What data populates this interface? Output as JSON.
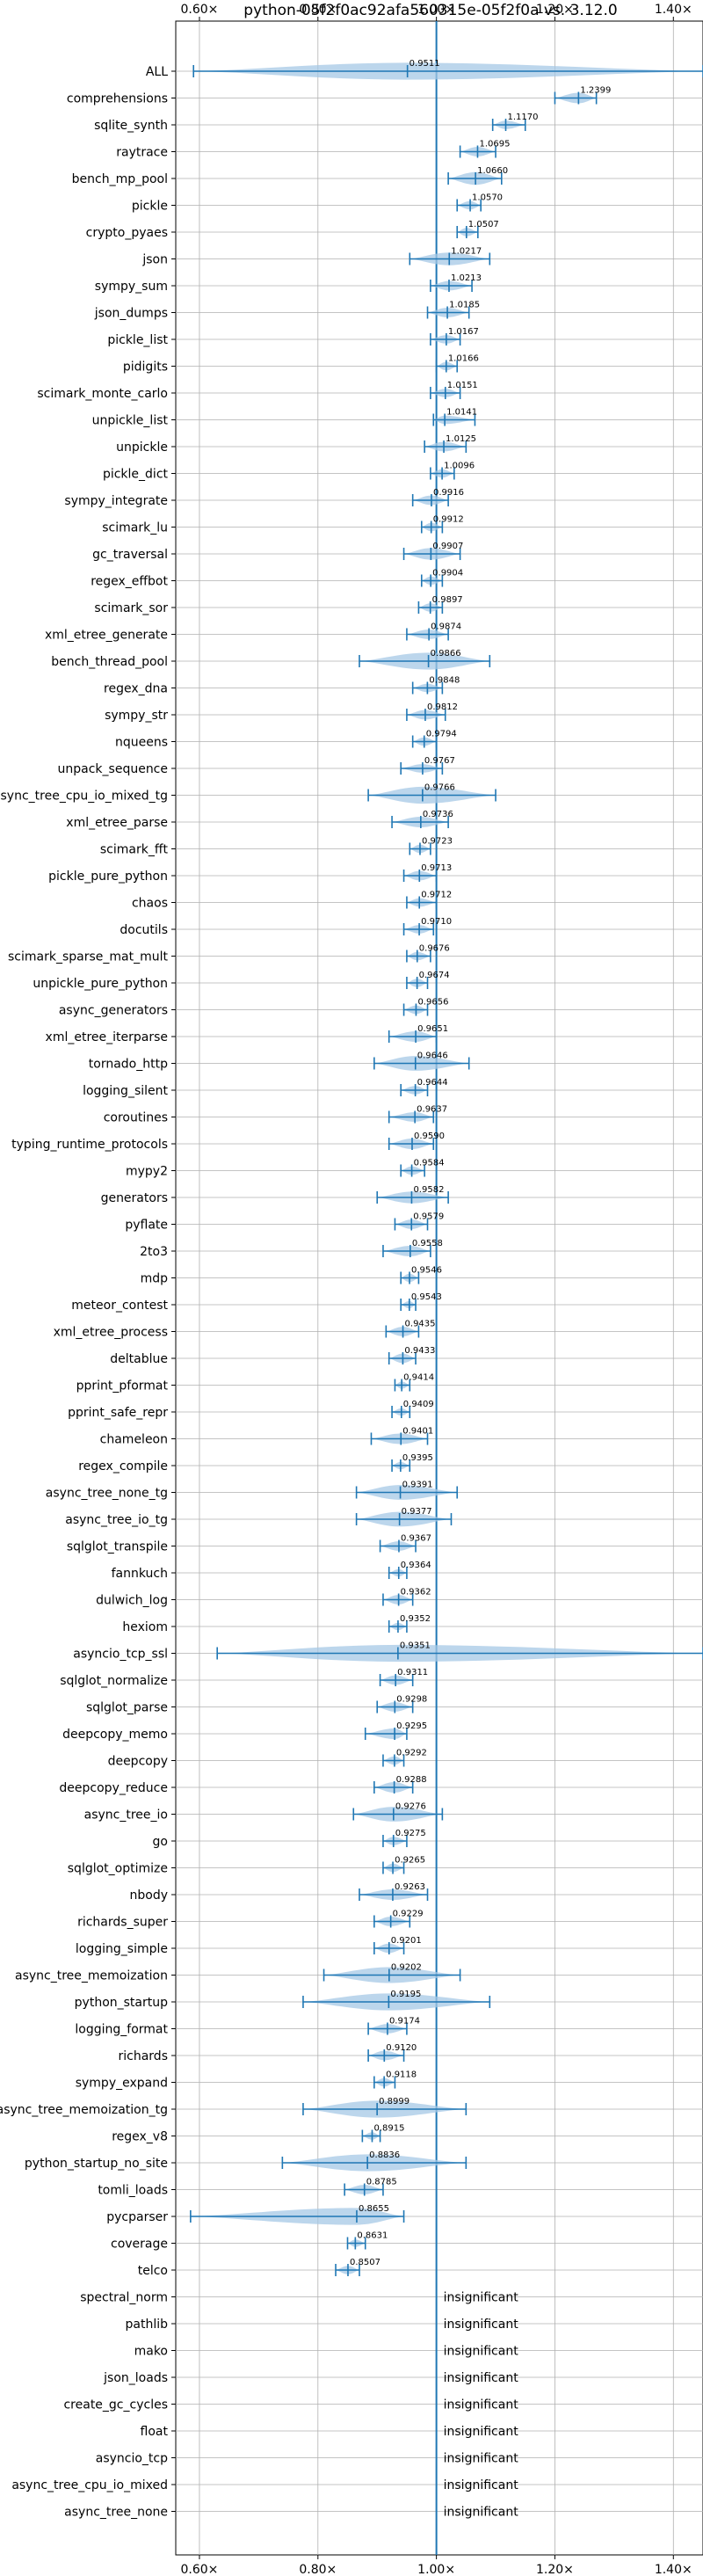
{
  "chart_data": {
    "type": "violin",
    "title": "python-05f2f0ac92afa560315e-05f2f0a vs. 3.12.0",
    "xlim": [
      0.56,
      1.45
    ],
    "xticks": [
      0.6,
      0.8,
      1.0,
      1.2,
      1.4
    ],
    "xtick_labels": [
      "0.60×",
      "0.80×",
      "1.00×",
      "1.20×",
      "1.40×"
    ],
    "reference_line": 1.0,
    "grid": true,
    "colors": {
      "violin": "#a6c8e6",
      "line": "#1f77b4",
      "grid": "#b0b0b0"
    },
    "insignificant_text": "insignificant",
    "benchmarks": [
      {
        "name": "ALL",
        "value": 0.9511,
        "label": "0.9511",
        "min": 0.59,
        "max": 1.45,
        "width": 0.8
      },
      {
        "name": "comprehensions",
        "value": 1.2399,
        "label": "1.2399",
        "min": 1.2,
        "max": 1.27,
        "width": 0.5
      },
      {
        "name": "sqlite_synth",
        "value": 1.117,
        "label": "1.1170",
        "min": 1.095,
        "max": 1.15,
        "width": 0.4
      },
      {
        "name": "raytrace",
        "value": 1.0695,
        "label": "1.0695",
        "min": 1.04,
        "max": 1.1,
        "width": 0.45
      },
      {
        "name": "bench_mp_pool",
        "value": 1.066,
        "label": "1.0660",
        "min": 1.02,
        "max": 1.11,
        "width": 0.6
      },
      {
        "name": "pickle",
        "value": 1.057,
        "label": "1.0570",
        "min": 1.035,
        "max": 1.075,
        "width": 0.4
      },
      {
        "name": "crypto_pyaes",
        "value": 1.0507,
        "label": "1.0507",
        "min": 1.035,
        "max": 1.07,
        "width": 0.4
      },
      {
        "name": "json",
        "value": 1.0217,
        "label": "1.0217",
        "min": 0.955,
        "max": 1.09,
        "width": 0.6
      },
      {
        "name": "sympy_sum",
        "value": 1.0213,
        "label": "1.0213",
        "min": 0.99,
        "max": 1.06,
        "width": 0.45
      },
      {
        "name": "json_dumps",
        "value": 1.0185,
        "label": "1.0185",
        "min": 0.985,
        "max": 1.055,
        "width": 0.45
      },
      {
        "name": "pickle_list",
        "value": 1.0167,
        "label": "1.0167",
        "min": 0.99,
        "max": 1.04,
        "width": 0.4
      },
      {
        "name": "pidigits",
        "value": 1.0166,
        "label": "1.0166",
        "min": 1.0,
        "max": 1.035,
        "width": 0.4
      },
      {
        "name": "scimark_monte_carlo",
        "value": 1.0151,
        "label": "1.0151",
        "min": 0.99,
        "max": 1.04,
        "width": 0.4
      },
      {
        "name": "unpickle_list",
        "value": 1.0141,
        "label": "1.0141",
        "min": 0.995,
        "max": 1.065,
        "width": 0.4
      },
      {
        "name": "unpickle",
        "value": 1.0125,
        "label": "1.0125",
        "min": 0.98,
        "max": 1.05,
        "width": 0.45
      },
      {
        "name": "pickle_dict",
        "value": 1.0096,
        "label": "1.0096",
        "min": 0.99,
        "max": 1.03,
        "width": 0.4
      },
      {
        "name": "sympy_integrate",
        "value": 0.9916,
        "label": "0.9916",
        "min": 0.96,
        "max": 1.02,
        "width": 0.45
      },
      {
        "name": "scimark_lu",
        "value": 0.9912,
        "label": "0.9912",
        "min": 0.975,
        "max": 1.01,
        "width": 0.4
      },
      {
        "name": "gc_traversal",
        "value": 0.9907,
        "label": "0.9907",
        "min": 0.945,
        "max": 1.04,
        "width": 0.55
      },
      {
        "name": "regex_effbot",
        "value": 0.9904,
        "label": "0.9904",
        "min": 0.975,
        "max": 1.01,
        "width": 0.4
      },
      {
        "name": "scimark_sor",
        "value": 0.9897,
        "label": "0.9897",
        "min": 0.97,
        "max": 1.01,
        "width": 0.4
      },
      {
        "name": "xml_etree_generate",
        "value": 0.9874,
        "label": "0.9874",
        "min": 0.95,
        "max": 1.02,
        "width": 0.45
      },
      {
        "name": "bench_thread_pool",
        "value": 0.9866,
        "label": "0.9866",
        "min": 0.87,
        "max": 1.09,
        "width": 0.8
      },
      {
        "name": "regex_dna",
        "value": 0.9848,
        "label": "0.9848",
        "min": 0.96,
        "max": 1.01,
        "width": 0.4
      },
      {
        "name": "sympy_str",
        "value": 0.9812,
        "label": "0.9812",
        "min": 0.95,
        "max": 1.015,
        "width": 0.45
      },
      {
        "name": "nqueens",
        "value": 0.9794,
        "label": "0.9794",
        "min": 0.96,
        "max": 1.0,
        "width": 0.4
      },
      {
        "name": "unpack_sequence",
        "value": 0.9767,
        "label": "0.9767",
        "min": 0.94,
        "max": 1.01,
        "width": 0.4
      },
      {
        "name": "async_tree_cpu_io_mixed_tg",
        "value": 0.9766,
        "label": "0.9766",
        "min": 0.885,
        "max": 1.1,
        "width": 0.8
      },
      {
        "name": "xml_etree_parse",
        "value": 0.9736,
        "label": "0.9736",
        "min": 0.925,
        "max": 1.02,
        "width": 0.5
      },
      {
        "name": "scimark_fft",
        "value": 0.9723,
        "label": "0.9723",
        "min": 0.955,
        "max": 0.99,
        "width": 0.4
      },
      {
        "name": "pickle_pure_python",
        "value": 0.9713,
        "label": "0.9713",
        "min": 0.945,
        "max": 1.0,
        "width": 0.45
      },
      {
        "name": "chaos",
        "value": 0.9712,
        "label": "0.9712",
        "min": 0.95,
        "max": 1.0,
        "width": 0.4
      },
      {
        "name": "docutils",
        "value": 0.971,
        "label": "0.9710",
        "min": 0.945,
        "max": 0.995,
        "width": 0.4
      },
      {
        "name": "scimark_sparse_mat_mult",
        "value": 0.9676,
        "label": "0.9676",
        "min": 0.95,
        "max": 0.99,
        "width": 0.4
      },
      {
        "name": "unpickle_pure_python",
        "value": 0.9674,
        "label": "0.9674",
        "min": 0.95,
        "max": 0.985,
        "width": 0.4
      },
      {
        "name": "async_generators",
        "value": 0.9656,
        "label": "0.9656",
        "min": 0.945,
        "max": 0.985,
        "width": 0.4
      },
      {
        "name": "xml_etree_iterparse",
        "value": 0.9651,
        "label": "0.9651",
        "min": 0.92,
        "max": 1.0,
        "width": 0.5
      },
      {
        "name": "tornado_http",
        "value": 0.9646,
        "label": "0.9646",
        "min": 0.895,
        "max": 1.055,
        "width": 0.7
      },
      {
        "name": "logging_silent",
        "value": 0.9644,
        "label": "0.9644",
        "min": 0.94,
        "max": 0.985,
        "width": 0.4
      },
      {
        "name": "coroutines",
        "value": 0.9637,
        "label": "0.9637",
        "min": 0.92,
        "max": 0.995,
        "width": 0.45
      },
      {
        "name": "typing_runtime_protocols",
        "value": 0.959,
        "label": "0.9590",
        "min": 0.92,
        "max": 0.995,
        "width": 0.5
      },
      {
        "name": "mypy2",
        "value": 0.9584,
        "label": "0.9584",
        "min": 0.94,
        "max": 0.98,
        "width": 0.4
      },
      {
        "name": "generators",
        "value": 0.9582,
        "label": "0.9582",
        "min": 0.9,
        "max": 1.02,
        "width": 0.55
      },
      {
        "name": "pyflate",
        "value": 0.9579,
        "label": "0.9579",
        "min": 0.93,
        "max": 0.985,
        "width": 0.45
      },
      {
        "name": "2to3",
        "value": 0.9558,
        "label": "0.9558",
        "min": 0.91,
        "max": 0.99,
        "width": 0.5
      },
      {
        "name": "mdp",
        "value": 0.9546,
        "label": "0.9546",
        "min": 0.94,
        "max": 0.97,
        "width": 0.4
      },
      {
        "name": "meteor_contest",
        "value": 0.9543,
        "label": "0.9543",
        "min": 0.94,
        "max": 0.965,
        "width": 0.35
      },
      {
        "name": "xml_etree_process",
        "value": 0.9435,
        "label": "0.9435",
        "min": 0.915,
        "max": 0.97,
        "width": 0.45
      },
      {
        "name": "deltablue",
        "value": 0.9433,
        "label": "0.9433",
        "min": 0.92,
        "max": 0.965,
        "width": 0.45
      },
      {
        "name": "pprint_pformat",
        "value": 0.9414,
        "label": "0.9414",
        "min": 0.93,
        "max": 0.955,
        "width": 0.35
      },
      {
        "name": "pprint_safe_repr",
        "value": 0.9409,
        "label": "0.9409",
        "min": 0.925,
        "max": 0.955,
        "width": 0.35
      },
      {
        "name": "chameleon",
        "value": 0.9401,
        "label": "0.9401",
        "min": 0.89,
        "max": 0.985,
        "width": 0.5
      },
      {
        "name": "regex_compile",
        "value": 0.9395,
        "label": "0.9395",
        "min": 0.925,
        "max": 0.955,
        "width": 0.35
      },
      {
        "name": "async_tree_none_tg",
        "value": 0.9391,
        "label": "0.9391",
        "min": 0.865,
        "max": 1.035,
        "width": 0.7
      },
      {
        "name": "async_tree_io_tg",
        "value": 0.9377,
        "label": "0.9377",
        "min": 0.865,
        "max": 1.025,
        "width": 0.7
      },
      {
        "name": "sqlglot_transpile",
        "value": 0.9367,
        "label": "0.9367",
        "min": 0.905,
        "max": 0.965,
        "width": 0.45
      },
      {
        "name": "fannkuch",
        "value": 0.9364,
        "label": "0.9364",
        "min": 0.92,
        "max": 0.95,
        "width": 0.35
      },
      {
        "name": "dulwich_log",
        "value": 0.9362,
        "label": "0.9362",
        "min": 0.91,
        "max": 0.96,
        "width": 0.45
      },
      {
        "name": "hexiom",
        "value": 0.9352,
        "label": "0.9352",
        "min": 0.92,
        "max": 0.95,
        "width": 0.35
      },
      {
        "name": "asyncio_tcp_ssl",
        "value": 0.9351,
        "label": "0.9351",
        "min": 0.63,
        "max": 1.45,
        "width": 0.8
      },
      {
        "name": "sqlglot_normalize",
        "value": 0.9311,
        "label": "0.9311",
        "min": 0.905,
        "max": 0.96,
        "width": 0.45
      },
      {
        "name": "sqlglot_parse",
        "value": 0.9298,
        "label": "0.9298",
        "min": 0.9,
        "max": 0.96,
        "width": 0.45
      },
      {
        "name": "deepcopy_memo",
        "value": 0.9295,
        "label": "0.9295",
        "min": 0.88,
        "max": 0.95,
        "width": 0.5
      },
      {
        "name": "deepcopy",
        "value": 0.9292,
        "label": "0.9292",
        "min": 0.91,
        "max": 0.945,
        "width": 0.4
      },
      {
        "name": "deepcopy_reduce",
        "value": 0.9288,
        "label": "0.9288",
        "min": 0.895,
        "max": 0.96,
        "width": 0.5
      },
      {
        "name": "async_tree_io",
        "value": 0.9276,
        "label": "0.9276",
        "min": 0.86,
        "max": 1.01,
        "width": 0.7
      },
      {
        "name": "go",
        "value": 0.9275,
        "label": "0.9275",
        "min": 0.91,
        "max": 0.95,
        "width": 0.4
      },
      {
        "name": "sqlglot_optimize",
        "value": 0.9265,
        "label": "0.9265",
        "min": 0.91,
        "max": 0.945,
        "width": 0.4
      },
      {
        "name": "nbody",
        "value": 0.9263,
        "label": "0.9263",
        "min": 0.87,
        "max": 0.985,
        "width": 0.5
      },
      {
        "name": "richards_super",
        "value": 0.9229,
        "label": "0.9229",
        "min": 0.895,
        "max": 0.955,
        "width": 0.45
      },
      {
        "name": "logging_simple",
        "value": 0.9201,
        "label": "0.9201",
        "min": 0.895,
        "max": 0.945,
        "width": 0.45
      },
      {
        "name": "async_tree_memoization",
        "value": 0.9202,
        "label": "0.9202",
        "min": 0.81,
        "max": 1.04,
        "width": 0.75
      },
      {
        "name": "python_startup",
        "value": 0.9195,
        "label": "0.9195",
        "min": 0.775,
        "max": 1.09,
        "width": 0.8
      },
      {
        "name": "logging_format",
        "value": 0.9174,
        "label": "0.9174",
        "min": 0.885,
        "max": 0.95,
        "width": 0.45
      },
      {
        "name": "richards",
        "value": 0.912,
        "label": "0.9120",
        "min": 0.885,
        "max": 0.945,
        "width": 0.45
      },
      {
        "name": "sympy_expand",
        "value": 0.9118,
        "label": "0.9118",
        "min": 0.895,
        "max": 0.93,
        "width": 0.4
      },
      {
        "name": "async_tree_memoization_tg",
        "value": 0.8999,
        "label": "0.8999",
        "min": 0.775,
        "max": 1.05,
        "width": 0.8
      },
      {
        "name": "regex_v8",
        "value": 0.8915,
        "label": "0.8915",
        "min": 0.875,
        "max": 0.905,
        "width": 0.35
      },
      {
        "name": "python_startup_no_site",
        "value": 0.8836,
        "label": "0.8836",
        "min": 0.74,
        "max": 1.05,
        "width": 0.8
      },
      {
        "name": "tomli_loads",
        "value": 0.8785,
        "label": "0.8785",
        "min": 0.845,
        "max": 0.91,
        "width": 0.45
      },
      {
        "name": "pycparser",
        "value": 0.8655,
        "label": "0.8655",
        "min": 0.585,
        "max": 0.945,
        "width": 0.8
      },
      {
        "name": "coverage",
        "value": 0.8631,
        "label": "0.8631",
        "min": 0.85,
        "max": 0.88,
        "width": 0.35
      },
      {
        "name": "telco",
        "value": 0.8507,
        "label": "0.8507",
        "min": 0.83,
        "max": 0.87,
        "width": 0.4
      },
      {
        "name": "spectral_norm",
        "insignificant": true
      },
      {
        "name": "pathlib",
        "insignificant": true
      },
      {
        "name": "mako",
        "insignificant": true
      },
      {
        "name": "json_loads",
        "insignificant": true
      },
      {
        "name": "create_gc_cycles",
        "insignificant": true
      },
      {
        "name": "float",
        "insignificant": true
      },
      {
        "name": "asyncio_tcp",
        "insignificant": true
      },
      {
        "name": "async_tree_cpu_io_mixed",
        "insignificant": true
      },
      {
        "name": "async_tree_none",
        "insignificant": true
      }
    ]
  }
}
